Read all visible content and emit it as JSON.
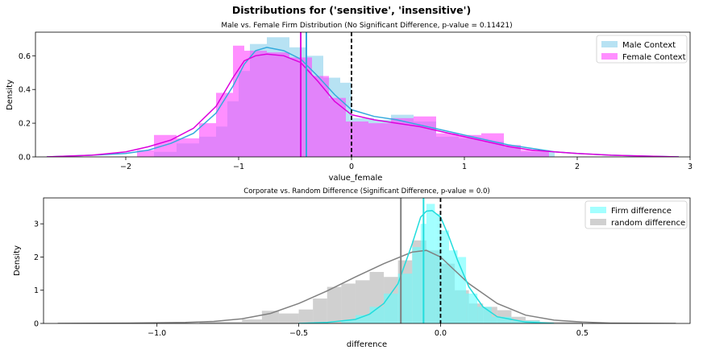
{
  "suptitle": "Distributions for ('sensitive', 'insensitive')",
  "chart_data": [
    {
      "type": "histogram+kde",
      "title": "Male vs. Female Firm Distribution (No Significant Difference, p-value = 0.11421)",
      "xlabel": "value_female",
      "ylabel": "Density",
      "xlim": [
        -2.8,
        3.0
      ],
      "ylim": [
        0,
        0.74
      ],
      "xticks": [
        -2,
        -1,
        0,
        1,
        2,
        3
      ],
      "xtick_labels": [
        "−2",
        "−1",
        "0",
        "1",
        "2",
        "3"
      ],
      "yticks": [
        0.0,
        0.2,
        0.4,
        0.6
      ],
      "ytick_labels": [
        "0.0",
        "0.2",
        "0.4",
        "0.6"
      ],
      "legend_position": "upper right",
      "reference_line": {
        "x": 0,
        "style": "dashed",
        "color": "#000000"
      },
      "series": [
        {
          "name": "Male Context",
          "hist_color": "#87ceeb",
          "line_color": "#33aadd",
          "bins": [
            [
              -1.75,
              -1.55,
              0.03
            ],
            [
              -1.55,
              -1.35,
              0.08
            ],
            [
              -1.35,
              -1.2,
              0.12
            ],
            [
              -1.2,
              -1.1,
              0.18
            ],
            [
              -1.1,
              -1.0,
              0.33
            ],
            [
              -1.0,
              -0.9,
              0.51
            ],
            [
              -0.9,
              -0.75,
              0.67
            ],
            [
              -0.75,
              -0.55,
              0.71
            ],
            [
              -0.55,
              -0.4,
              0.65
            ],
            [
              -0.4,
              -0.25,
              0.6
            ],
            [
              -0.25,
              -0.1,
              0.47
            ],
            [
              -0.1,
              0.0,
              0.44
            ],
            [
              0.0,
              0.2,
              0.23
            ],
            [
              0.2,
              0.35,
              0.22
            ],
            [
              0.35,
              0.55,
              0.25
            ],
            [
              0.55,
              0.75,
              0.21
            ],
            [
              0.75,
              0.95,
              0.12
            ],
            [
              0.95,
              1.15,
              0.11
            ],
            [
              1.15,
              1.35,
              0.09
            ],
            [
              1.35,
              1.5,
              0.06
            ],
            [
              1.5,
              1.8,
              0.03
            ]
          ],
          "kde_x": [
            -2.7,
            -2.3,
            -2.0,
            -1.8,
            -1.6,
            -1.4,
            -1.2,
            -1.05,
            -0.95,
            -0.85,
            -0.75,
            -0.6,
            -0.45,
            -0.3,
            -0.15,
            0.0,
            0.2,
            0.4,
            0.6,
            0.8,
            1.0,
            1.2,
            1.4,
            1.6,
            1.8,
            2.0,
            2.3,
            2.6,
            2.9
          ],
          "kde_y": [
            0.0,
            0.01,
            0.02,
            0.04,
            0.08,
            0.14,
            0.26,
            0.42,
            0.55,
            0.63,
            0.65,
            0.63,
            0.58,
            0.48,
            0.37,
            0.28,
            0.24,
            0.22,
            0.19,
            0.16,
            0.13,
            0.1,
            0.07,
            0.05,
            0.03,
            0.02,
            0.01,
            0.005,
            0.0
          ],
          "mean": -0.4
        },
        {
          "name": "Female Context",
          "hist_color": "#ff44ff",
          "line_color": "#dd00dd",
          "bins": [
            [
              -1.9,
              -1.75,
              0.04
            ],
            [
              -1.75,
              -1.55,
              0.13
            ],
            [
              -1.55,
              -1.35,
              0.11
            ],
            [
              -1.35,
              -1.2,
              0.2
            ],
            [
              -1.2,
              -1.05,
              0.38
            ],
            [
              -1.05,
              -0.95,
              0.66
            ],
            [
              -0.95,
              -0.75,
              0.63
            ],
            [
              -0.75,
              -0.55,
              0.62
            ],
            [
              -0.55,
              -0.35,
              0.59
            ],
            [
              -0.35,
              -0.2,
              0.48
            ],
            [
              -0.2,
              -0.05,
              0.35
            ],
            [
              -0.05,
              0.15,
              0.21
            ],
            [
              0.15,
              0.35,
              0.2
            ],
            [
              0.35,
              0.55,
              0.23
            ],
            [
              0.55,
              0.75,
              0.24
            ],
            [
              0.75,
              0.95,
              0.14
            ],
            [
              0.95,
              1.15,
              0.13
            ],
            [
              1.15,
              1.35,
              0.14
            ],
            [
              1.35,
              1.5,
              0.07
            ],
            [
              1.5,
              1.75,
              0.04
            ]
          ],
          "kde_x": [
            -2.7,
            -2.3,
            -2.0,
            -1.8,
            -1.6,
            -1.4,
            -1.2,
            -1.05,
            -0.95,
            -0.85,
            -0.75,
            -0.6,
            -0.45,
            -0.3,
            -0.15,
            0.0,
            0.2,
            0.4,
            0.6,
            0.8,
            1.0,
            1.2,
            1.4,
            1.6,
            1.8,
            2.0,
            2.3,
            2.6,
            2.9
          ],
          "kde_y": [
            0.0,
            0.01,
            0.03,
            0.06,
            0.1,
            0.17,
            0.3,
            0.47,
            0.57,
            0.6,
            0.61,
            0.6,
            0.56,
            0.45,
            0.33,
            0.25,
            0.22,
            0.2,
            0.18,
            0.15,
            0.12,
            0.09,
            0.06,
            0.04,
            0.03,
            0.02,
            0.01,
            0.005,
            0.0
          ],
          "mean": -0.45
        }
      ]
    },
    {
      "type": "histogram+kde",
      "title": "Corporate vs. Random Difference (Significant Difference, p-value = 0.0)",
      "xlabel": "difference",
      "ylabel": "Density",
      "xlim": [
        -1.4,
        0.88
      ],
      "ylim": [
        0,
        3.78
      ],
      "xticks": [
        -1.0,
        -0.5,
        0.0,
        0.5
      ],
      "xtick_labels": [
        "−1.0",
        "−0.5",
        "0.0",
        "0.5"
      ],
      "yticks": [
        0,
        1,
        2,
        3
      ],
      "ytick_labels": [
        "0",
        "1",
        "2",
        "3"
      ],
      "legend_position": "upper right",
      "reference_line": {
        "x": 0,
        "style": "dashed",
        "color": "#000000"
      },
      "series": [
        {
          "name": "random difference",
          "hist_color": "#b0b0b0",
          "line_color": "#808080",
          "bins": [
            [
              -0.85,
              -0.7,
              0.05
            ],
            [
              -0.7,
              -0.63,
              0.12
            ],
            [
              -0.63,
              -0.57,
              0.38
            ],
            [
              -0.57,
              -0.5,
              0.3
            ],
            [
              -0.5,
              -0.45,
              0.42
            ],
            [
              -0.45,
              -0.4,
              0.75
            ],
            [
              -0.4,
              -0.35,
              1.1
            ],
            [
              -0.35,
              -0.3,
              1.2
            ],
            [
              -0.3,
              -0.25,
              1.3
            ],
            [
              -0.25,
              -0.2,
              1.55
            ],
            [
              -0.2,
              -0.15,
              1.4
            ],
            [
              -0.15,
              -0.1,
              1.9
            ],
            [
              -0.1,
              -0.05,
              2.5
            ],
            [
              -0.05,
              0.0,
              2.2
            ],
            [
              0.0,
              0.05,
              1.8
            ],
            [
              0.05,
              0.1,
              1.0
            ],
            [
              0.1,
              0.15,
              0.6
            ],
            [
              0.15,
              0.2,
              0.5
            ],
            [
              0.2,
              0.25,
              0.4
            ],
            [
              0.25,
              0.3,
              0.2
            ],
            [
              0.3,
              0.35,
              0.1
            ],
            [
              0.35,
              0.5,
              0.05
            ]
          ],
          "kde_x": [
            -1.35,
            -1.1,
            -0.9,
            -0.8,
            -0.7,
            -0.6,
            -0.5,
            -0.4,
            -0.3,
            -0.2,
            -0.1,
            -0.05,
            0.0,
            0.05,
            0.1,
            0.2,
            0.3,
            0.4,
            0.5,
            0.6,
            0.83
          ],
          "kde_y": [
            0.0,
            0.01,
            0.03,
            0.06,
            0.14,
            0.3,
            0.6,
            0.98,
            1.4,
            1.8,
            2.15,
            2.2,
            2.0,
            1.6,
            1.2,
            0.6,
            0.25,
            0.1,
            0.04,
            0.01,
            0.0
          ],
          "mean": -0.14
        },
        {
          "name": "Firm difference",
          "hist_color": "#66ffff",
          "line_color": "#22dddd",
          "bins": [
            [
              -0.35,
              -0.3,
              0.1
            ],
            [
              -0.3,
              -0.25,
              0.25
            ],
            [
              -0.25,
              -0.2,
              0.5
            ],
            [
              -0.2,
              -0.15,
              0.9
            ],
            [
              -0.15,
              -0.1,
              1.5
            ],
            [
              -0.1,
              -0.07,
              2.3
            ],
            [
              -0.07,
              -0.05,
              3.0
            ],
            [
              -0.05,
              -0.02,
              3.6
            ],
            [
              -0.02,
              0.0,
              3.3
            ],
            [
              0.0,
              0.03,
              2.8
            ],
            [
              0.03,
              0.06,
              2.2
            ],
            [
              0.06,
              0.09,
              2.0
            ],
            [
              0.09,
              0.13,
              0.9
            ],
            [
              0.13,
              0.18,
              0.5
            ],
            [
              0.18,
              0.25,
              0.2
            ],
            [
              0.25,
              0.35,
              0.08
            ]
          ],
          "kde_x": [
            -0.5,
            -0.4,
            -0.3,
            -0.25,
            -0.2,
            -0.15,
            -0.1,
            -0.07,
            -0.05,
            -0.03,
            0.0,
            0.03,
            0.06,
            0.1,
            0.15,
            0.2,
            0.3,
            0.4
          ],
          "kde_y": [
            0.0,
            0.03,
            0.12,
            0.28,
            0.6,
            1.2,
            2.4,
            3.2,
            3.38,
            3.4,
            3.2,
            2.6,
            1.9,
            1.1,
            0.5,
            0.2,
            0.04,
            0.0
          ],
          "mean": -0.06
        }
      ]
    }
  ]
}
